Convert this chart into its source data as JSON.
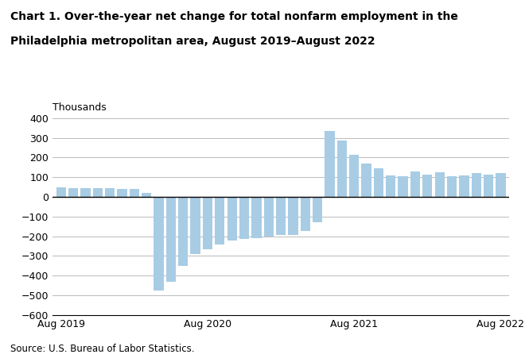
{
  "title_line1": "Chart 1. Over-the-year net change for total nonfarm employment in the",
  "title_line2": "Philadelphia metropolitan area, August 2019–August 2022",
  "ylabel": "Thousands",
  "source": "Source: U.S. Bureau of Labor Statistics.",
  "bar_color": "#a8cce4",
  "zero_line_color": "#000000",
  "grid_color": "#b0b0b0",
  "background_color": "#ffffff",
  "ylim": [
    -600,
    400
  ],
  "yticks": [
    -600,
    -500,
    -400,
    -300,
    -200,
    -100,
    0,
    100,
    200,
    300,
    400
  ],
  "values": [
    47,
    43,
    43,
    46,
    45,
    42,
    42,
    19,
    -476,
    -432,
    -350,
    -290,
    -265,
    -240,
    -220,
    -215,
    -210,
    -200,
    -195,
    -195,
    -175,
    -130,
    335,
    285,
    215,
    170,
    145,
    110,
    105,
    130,
    115,
    125,
    105,
    110,
    120,
    115,
    120
  ],
  "xtick_positions": [
    0,
    12,
    24,
    36
  ],
  "xtick_labels": [
    "Aug 2019",
    "Aug 2020",
    "Aug 2021",
    "Aug 2022"
  ],
  "figsize": [
    6.6,
    4.51
  ],
  "dpi": 100
}
